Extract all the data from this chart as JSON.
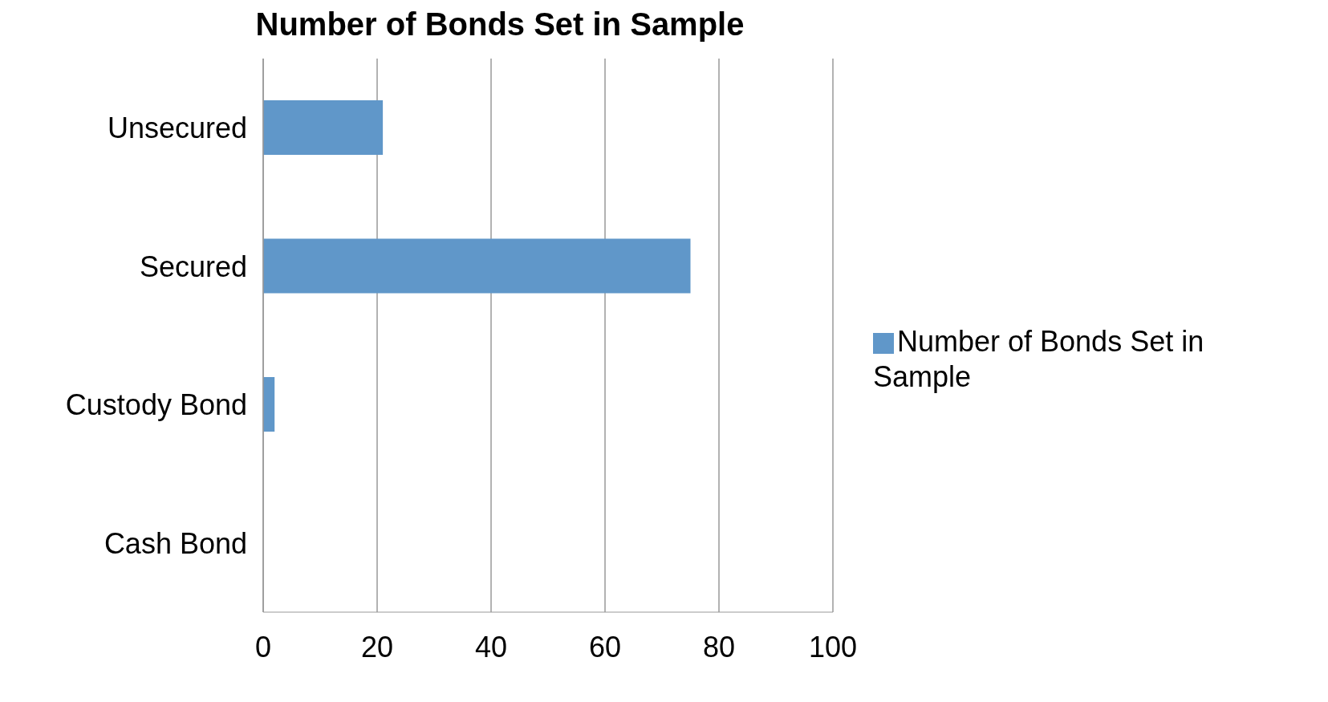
{
  "chart_data": {
    "type": "bar",
    "orientation": "horizontal",
    "title": "Number of Bonds Set in Sample",
    "categories": [
      "Unsecured",
      "Secured",
      "Custody Bond",
      "Cash Bond"
    ],
    "series": [
      {
        "name": "Number of Bonds Set in Sample",
        "color": "#6097c9",
        "values": [
          21,
          75,
          2,
          0
        ]
      }
    ],
    "xlim": [
      0,
      100
    ],
    "xticks": [
      0,
      20,
      40,
      60,
      80,
      100
    ],
    "grid": "x",
    "legend": "right"
  }
}
